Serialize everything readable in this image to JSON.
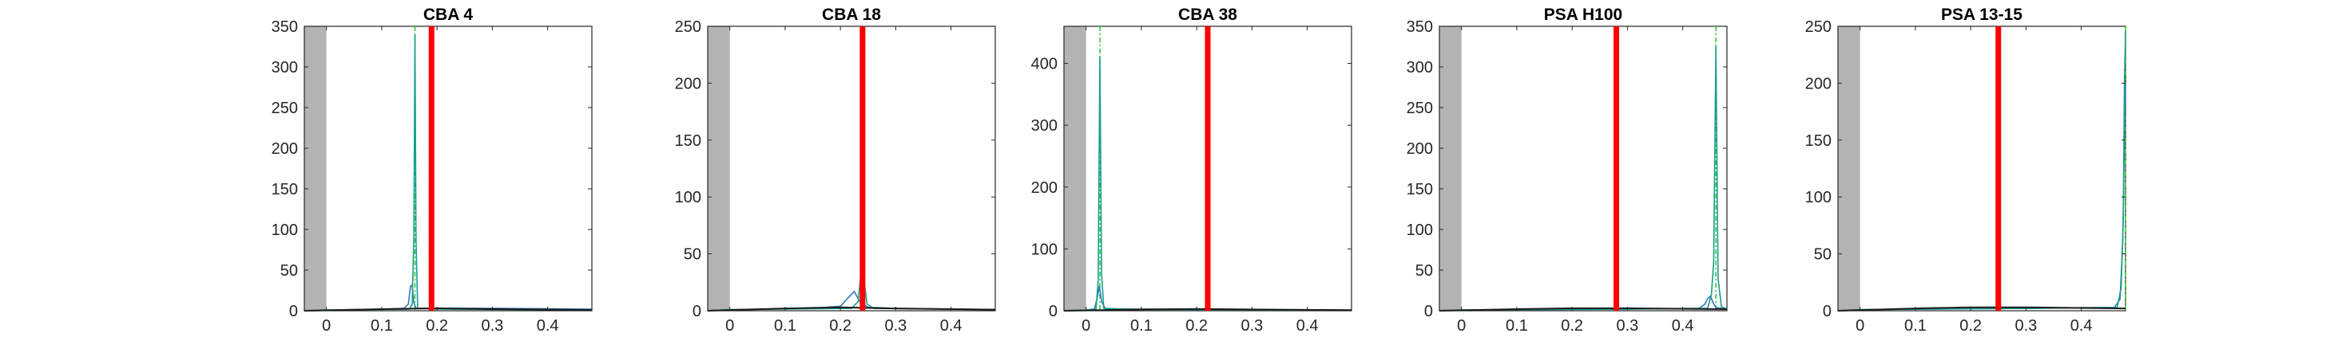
{
  "colors": {
    "excluded_region": "#b3b3b3",
    "threshold_line": "#ff0000",
    "curve_blue": "#2e7bb8",
    "curve_teal": "#1a9e8c",
    "marker_green": "#33cc33",
    "baseline": "#1a1a1a",
    "axes": "#262626"
  },
  "chart_data": [
    {
      "type": "line",
      "title": "CBA 4",
      "xlabel": "",
      "ylabel": "",
      "xlim": [
        -0.04,
        0.48
      ],
      "ylim": [
        0,
        350
      ],
      "xticks": [
        "0",
        "0.1",
        "0.2",
        "0.3",
        "0.4"
      ],
      "yticks": [
        "0",
        "50",
        "100",
        "150",
        "200",
        "250",
        "300",
        "350"
      ],
      "shaded_x_range": [
        -0.04,
        0.0
      ],
      "threshold_x": 0.19,
      "peak_marker_x": 0.16,
      "series": [
        {
          "color": "blue",
          "x": [
            -0.04,
            0.0,
            0.1,
            0.14,
            0.148,
            0.152,
            0.155,
            0.158,
            0.162,
            0.17,
            0.3,
            0.48
          ],
          "y": [
            0,
            1,
            2,
            3,
            8,
            30,
            32,
            10,
            3,
            3,
            3,
            2
          ]
        },
        {
          "color": "teal",
          "x": [
            -0.04,
            0.0,
            0.15,
            0.155,
            0.158,
            0.16,
            0.162,
            0.165,
            0.2,
            0.48
          ],
          "y": [
            0,
            1,
            2,
            8,
            90,
            340,
            90,
            3,
            2,
            1
          ]
        },
        {
          "color": "black",
          "x": [
            -0.04,
            0.1,
            0.2,
            0.3,
            0.48
          ],
          "y": [
            0,
            2,
            3,
            2,
            1
          ]
        }
      ]
    },
    {
      "type": "line",
      "title": "CBA 18",
      "xlabel": "",
      "ylabel": "",
      "xlim": [
        -0.04,
        0.48
      ],
      "ylim": [
        0,
        250
      ],
      "xticks": [
        "0",
        "0.1",
        "0.2",
        "0.3",
        "0.4"
      ],
      "yticks": [
        "0",
        "50",
        "100",
        "150",
        "200",
        "250"
      ],
      "shaded_x_range": [
        -0.04,
        0.0
      ],
      "threshold_x": 0.24,
      "peak_marker_x": 0.24,
      "series": [
        {
          "color": "blue",
          "x": [
            -0.04,
            0.0,
            0.15,
            0.2,
            0.215,
            0.225,
            0.235,
            0.25,
            0.3,
            0.48
          ],
          "y": [
            0,
            1,
            2,
            4,
            12,
            17,
            8,
            3,
            2,
            1
          ]
        },
        {
          "color": "teal",
          "x": [
            -0.04,
            0.0,
            0.22,
            0.232,
            0.238,
            0.242,
            0.248,
            0.26,
            0.48
          ],
          "y": [
            0,
            1,
            2,
            8,
            38,
            30,
            6,
            2,
            1
          ]
        },
        {
          "color": "black",
          "x": [
            -0.04,
            0.1,
            0.2,
            0.3,
            0.48
          ],
          "y": [
            0,
            2,
            3,
            2,
            1
          ]
        }
      ]
    },
    {
      "type": "line",
      "title": "CBA 38",
      "xlabel": "",
      "ylabel": "",
      "xlim": [
        -0.04,
        0.48
      ],
      "ylim": [
        0,
        460
      ],
      "xticks": [
        "0",
        "0.1",
        "0.2",
        "0.3",
        "0.4"
      ],
      "yticks": [
        "0",
        "100",
        "200",
        "300",
        "400"
      ],
      "shaded_x_range": [
        -0.04,
        0.0
      ],
      "threshold_x": 0.22,
      "peak_marker_x": 0.025,
      "series": [
        {
          "color": "blue",
          "x": [
            -0.04,
            0.0,
            0.015,
            0.02,
            0.024,
            0.028,
            0.035,
            0.2,
            0.48
          ],
          "y": [
            0,
            1,
            3,
            20,
            40,
            15,
            3,
            2,
            1
          ]
        },
        {
          "color": "teal",
          "x": [
            -0.04,
            0.0,
            0.018,
            0.022,
            0.025,
            0.028,
            0.032,
            0.1,
            0.48
          ],
          "y": [
            0,
            1,
            3,
            50,
            410,
            60,
            4,
            2,
            1
          ]
        },
        {
          "color": "black",
          "x": [
            -0.04,
            0.1,
            0.2,
            0.3,
            0.48
          ],
          "y": [
            0,
            2,
            3,
            2,
            1
          ]
        }
      ]
    },
    {
      "type": "line",
      "title": "PSA H100",
      "xlabel": "",
      "ylabel": "",
      "xlim": [
        -0.04,
        0.48
      ],
      "ylim": [
        0,
        350
      ],
      "xticks": [
        "0",
        "0.1",
        "0.2",
        "0.3",
        "0.4"
      ],
      "yticks": [
        "0",
        "50",
        "100",
        "150",
        "200",
        "250",
        "300",
        "350"
      ],
      "shaded_x_range": [
        -0.04,
        0.0
      ],
      "threshold_x": 0.28,
      "peak_marker_x": 0.46,
      "series": [
        {
          "color": "blue",
          "x": [
            -0.04,
            0.0,
            0.3,
            0.43,
            0.44,
            0.445,
            0.45,
            0.455,
            0.46,
            0.48
          ],
          "y": [
            0,
            1,
            2,
            3,
            8,
            15,
            18,
            10,
            4,
            2
          ]
        },
        {
          "color": "teal",
          "x": [
            -0.04,
            0.0,
            0.3,
            0.445,
            0.452,
            0.456,
            0.46,
            0.464,
            0.47,
            0.48
          ],
          "y": [
            0,
            1,
            2,
            3,
            20,
            60,
            325,
            40,
            5,
            2
          ]
        },
        {
          "color": "black",
          "x": [
            -0.04,
            0.1,
            0.2,
            0.3,
            0.48
          ],
          "y": [
            0,
            2,
            3,
            3,
            2
          ]
        }
      ]
    },
    {
      "type": "line",
      "title": "PSA 13-15",
      "xlabel": "",
      "ylabel": "",
      "xlim": [
        -0.04,
        0.48
      ],
      "ylim": [
        0,
        250
      ],
      "xticks": [
        "0",
        "0.1",
        "0.2",
        "0.3",
        "0.4"
      ],
      "yticks": [
        "0",
        "50",
        "100",
        "150",
        "200",
        "250"
      ],
      "shaded_x_range": [
        -0.04,
        0.0
      ],
      "threshold_x": 0.25,
      "peak_marker_x": 0.48,
      "series": [
        {
          "color": "blue",
          "x": [
            -0.04,
            0.0,
            0.3,
            0.46,
            0.47,
            0.475,
            0.478,
            0.48
          ],
          "y": [
            0,
            1,
            2,
            3,
            10,
            60,
            150,
            200
          ]
        },
        {
          "color": "teal",
          "x": [
            -0.04,
            0.0,
            0.3,
            0.465,
            0.472,
            0.476,
            0.478,
            0.48
          ],
          "y": [
            0,
            1,
            2,
            3,
            20,
            80,
            200,
            245
          ]
        },
        {
          "color": "black",
          "x": [
            -0.04,
            0.1,
            0.2,
            0.3,
            0.48
          ],
          "y": [
            0,
            2,
            3,
            3,
            2
          ]
        }
      ]
    }
  ]
}
